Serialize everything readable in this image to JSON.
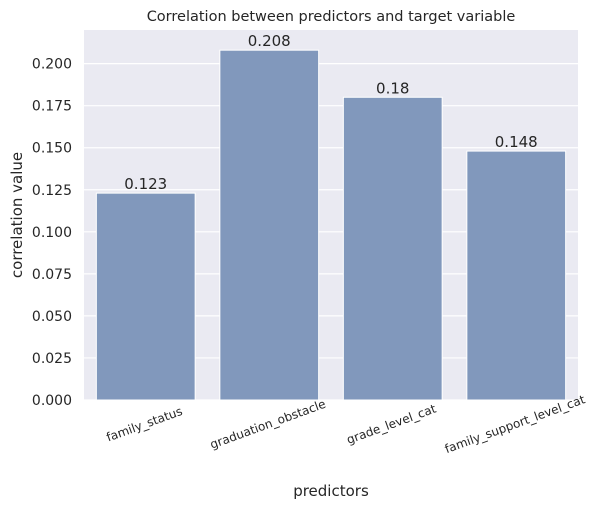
{
  "chart_data": {
    "type": "bar",
    "title": "Correlation between predictors and target variable",
    "xlabel": "predictors",
    "ylabel": "correlation value",
    "categories": [
      "family_status",
      "graduation_obstacle",
      "grade_level_cat",
      "family_support_level_cat"
    ],
    "values": [
      0.123,
      0.208,
      0.18,
      0.148
    ],
    "value_labels": [
      "0.123",
      "0.208",
      "0.18",
      "0.148"
    ],
    "ylim": [
      0,
      0.22
    ],
    "yticks": [
      0.0,
      0.025,
      0.05,
      0.075,
      0.1,
      0.125,
      0.15,
      0.175,
      0.2
    ],
    "ytick_labels": [
      "0.000",
      "0.025",
      "0.050",
      "0.075",
      "0.100",
      "0.125",
      "0.150",
      "0.175",
      "0.200"
    ],
    "grid": true,
    "legend": "none",
    "colors": {
      "bar": "#8198bc",
      "plot_background": "#eaeaf2",
      "grid": "#ffffff",
      "text": "#262626"
    }
  }
}
